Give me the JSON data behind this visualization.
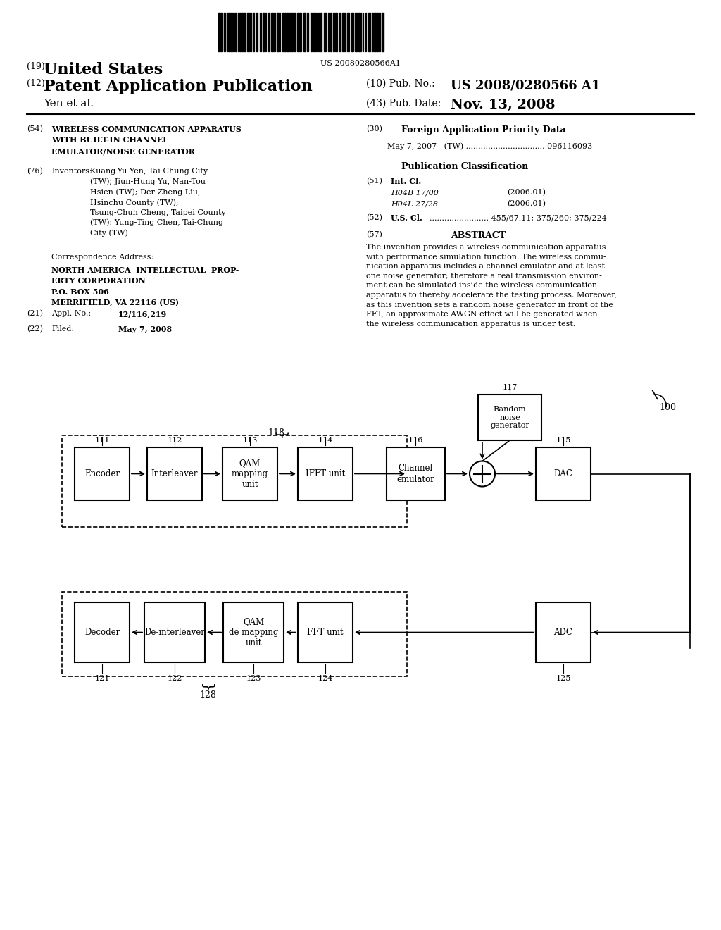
{
  "bg_color": "#ffffff",
  "title_number": "US 20080280566A1",
  "patent_number": "(19) United States",
  "pub_type": "(12) Patent Application Publication",
  "inventors_label": "Yen et al.",
  "pub_no_label": "(10) Pub. No.:",
  "pub_no_value": "US 2008/0280566 A1",
  "pub_date_label": "(43) Pub. Date:",
  "pub_date_value": "Nov. 13, 2008",
  "field54_label": "(54)",
  "field54_title": "WIRELESS COMMUNICATION APPARATUS\nWITH BUILT-IN CHANNEL\nEMULATOR/NOISE GENERATOR",
  "field76_label": "(76)",
  "field76_title": "Inventors:",
  "field76_text": "Kuang-Yu Yen, Tai-Chung City\n(TW); Jiun-Hung Yu, Nan-Tou\nHsien (TW); Der-Zheng Liu,\nHsinchu County (TW);\nTsung-Chun Cheng, Taipei County\n(TW); Yung-Ting Chen, Tai-Chung\nCity (TW)",
  "corr_addr_label": "Correspondence Address:",
  "corr_addr_text": "NORTH AMERICA INTELLECTUAL PROP-\nERTY CORPORATION\nP.O. BOX 506\nMERRIFIELD, VA 22116 (US)",
  "appl_no_label": "(21)   Appl. No.:",
  "appl_no_value": "12/116,219",
  "filed_label": "(22)   Filed:",
  "filed_value": "May 7, 2008",
  "field30_label": "(30)",
  "field30_title": "Foreign Application Priority Data",
  "field30_text": "May 7, 2007   (TW) ................................ 096116093",
  "pub_class_title": "Publication Classification",
  "int_cl_label": "(51)   Int. Cl.",
  "int_cl_h04b": "H04B 17/00",
  "int_cl_h04b_date": "(2006.01)",
  "int_cl_h04l": "H04L 27/28",
  "int_cl_h04l_date": "(2006.01)",
  "us_cl_label": "(52)   U.S. Cl.",
  "us_cl_value": "........................ 455/67.11; 375/260; 375/224",
  "abstract_label": "(57)",
  "abstract_title": "ABSTRACT",
  "abstract_text": "The invention provides a wireless communication apparatus\nwith performance simulation function. The wireless commu-\nnication apparatus includes a channel emulator and at least\none noise generator; therefore a real transmission environ-\nment can be simulated inside the wireless communication\napparatus to thereby accelerate the testing process. Moreover,\nas this invention sets a random noise generator in front of the\nFFT, an approximate AWGN effect will be generated when\nthe wireless communication apparatus is under test.",
  "diagram_label": "100",
  "tx_label": "118",
  "rx_label": "128",
  "boxes_top": [
    {
      "id": "111",
      "label": "Encoder"
    },
    {
      "id": "112",
      "label": "Interleaver"
    },
    {
      "id": "113",
      "label": "QAM\nmapping\nunit"
    },
    {
      "id": "114",
      "label": "IFFT unit"
    },
    {
      "id": "116",
      "label": "Channel\nemulator"
    },
    {
      "id": "115",
      "label": "DAC"
    }
  ],
  "boxes_bottom": [
    {
      "id": "121",
      "label": "Decoder"
    },
    {
      "id": "122",
      "label": "De-interleaver"
    },
    {
      "id": "123",
      "label": "QAM\nde mapping\nunit"
    },
    {
      "id": "124",
      "label": "FFT unit"
    },
    {
      "id": "125",
      "label": "ADC"
    }
  ],
  "noise_box": {
    "id": "117",
    "label": "Random\nnoise\ngenerator"
  }
}
